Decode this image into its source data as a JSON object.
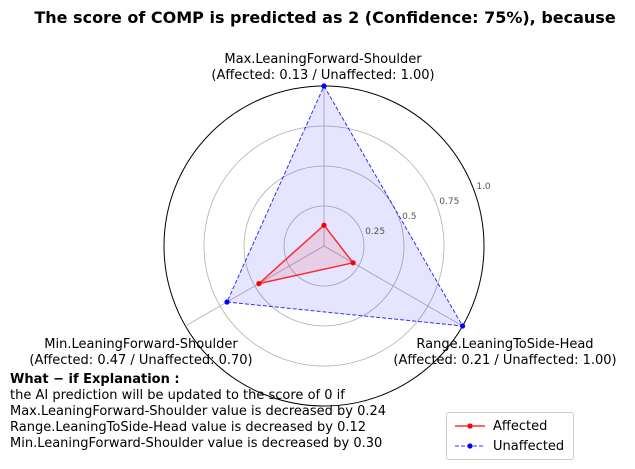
{
  "title": "The score of COMP is predicted as 2 (Confidence: 75%), because",
  "chart_data": {
    "type": "radar",
    "axes": [
      {
        "name": "Max.LeaningForward-Shoulder",
        "detail": "(Affected: 0.13 / Unaffected: 1.00)"
      },
      {
        "name": "Range.LeaningToSide-Head",
        "detail": "(Affected: 0.21 / Unaffected: 1.00)"
      },
      {
        "name": "Min.LeaningForward-Shoulder",
        "detail": "(Affected: 0.47 / Unaffected: 0.70)"
      }
    ],
    "radial_ticks": [
      0.25,
      0.5,
      0.75,
      1.0
    ],
    "radial_tick_labels": [
      "0.25",
      "0.5",
      "0.75",
      "1.0"
    ],
    "rlim": [
      0,
      1.0
    ],
    "series": [
      {
        "name": "Affected",
        "values": [
          0.13,
          0.21,
          0.47
        ],
        "color": "#ff0000",
        "style": "solid"
      },
      {
        "name": "Unaffected",
        "values": [
          1.0,
          1.0,
          0.7
        ],
        "color": "#0000ff",
        "style": "dashed"
      }
    ],
    "legend_position": "lower-right",
    "grid": true
  },
  "explanation": {
    "heading": "What − if Explanation :",
    "lines": [
      "the AI prediction will be updated to the score of 0 if",
      "Max.LeaningForward-Shoulder value is decreased by 0.24",
      "Range.LeaningToSide-Head value is decreased by 0.12",
      "Min.LeaningForward-Shoulder value is decreased by 0.30"
    ]
  },
  "legend": {
    "items": [
      "Affected",
      "Unaffected"
    ]
  }
}
